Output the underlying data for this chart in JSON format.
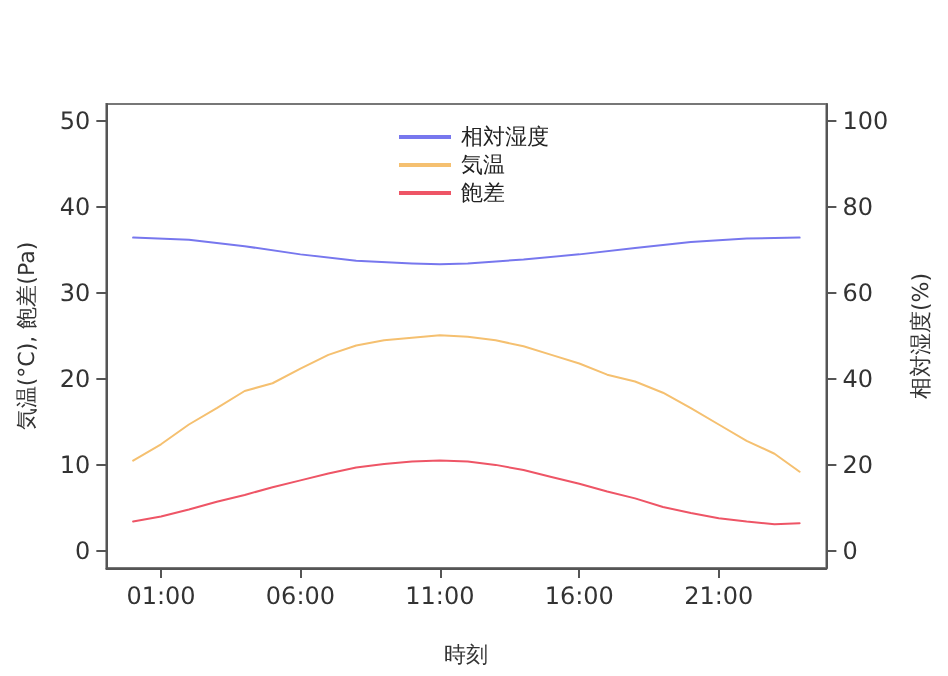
{
  "chart_data": {
    "type": "line",
    "xlabel": "時刻",
    "ylabel": "気温(°C), 飽差(Pa)",
    "y2label": "相対湿度(%)",
    "xlim": [
      -0.96,
      24.86
    ],
    "xticks": [
      {
        "value": 1,
        "label": "01:00"
      },
      {
        "value": 6,
        "label": "06:00"
      },
      {
        "value": 11,
        "label": "11:00"
      },
      {
        "value": 16,
        "label": "16:00"
      },
      {
        "value": 21,
        "label": "21:00"
      }
    ],
    "ylim": [
      -2,
      52
    ],
    "yticks": [
      0,
      10,
      20,
      30,
      40,
      50
    ],
    "y2lim": [
      -4,
      104
    ],
    "y2ticks": [
      0,
      20,
      40,
      60,
      80,
      100
    ],
    "grid": false,
    "legend": "top",
    "marker": "none",
    "line_style": "solid",
    "series": [
      {
        "name": "相対湿度",
        "color": "#7777ee",
        "axis": "y2",
        "x": [
          0,
          2,
          4,
          6,
          8,
          10,
          11,
          12,
          14,
          16,
          18,
          20,
          22,
          23.9
        ],
        "values": [
          72.9,
          72.4,
          70.9,
          69.0,
          67.5,
          66.9,
          66.7,
          66.9,
          67.8,
          69.0,
          70.5,
          71.9,
          72.7,
          72.9
        ]
      },
      {
        "name": "気温",
        "color": "#f5c070",
        "x": [
          0,
          1,
          2,
          3,
          4,
          5,
          6,
          7,
          8,
          9,
          10,
          11,
          12,
          13,
          14,
          15,
          16,
          17,
          18,
          19,
          20,
          21,
          22,
          23,
          23.9
        ],
        "values": [
          10.5,
          12.4,
          14.7,
          16.6,
          18.6,
          19.5,
          21.2,
          22.8,
          23.9,
          24.5,
          24.8,
          25.1,
          24.9,
          24.5,
          23.8,
          22.8,
          21.8,
          20.5,
          19.7,
          18.4,
          16.6,
          14.7,
          12.8,
          11.3,
          9.2
        ]
      },
      {
        "name": "飽差",
        "color": "#ee5566",
        "x": [
          0,
          1,
          2,
          3,
          4,
          5,
          6,
          7,
          8,
          9,
          10,
          11,
          12,
          13,
          14,
          15,
          16,
          17,
          18,
          19,
          20,
          21,
          22,
          23,
          23.9
        ],
        "values": [
          3.4,
          4.0,
          4.8,
          5.7,
          6.5,
          7.4,
          8.2,
          9.0,
          9.7,
          10.1,
          10.4,
          10.5,
          10.4,
          10.0,
          9.4,
          8.6,
          7.8,
          6.9,
          6.1,
          5.1,
          4.4,
          3.8,
          3.4,
          3.1,
          3.2
        ]
      }
    ]
  }
}
